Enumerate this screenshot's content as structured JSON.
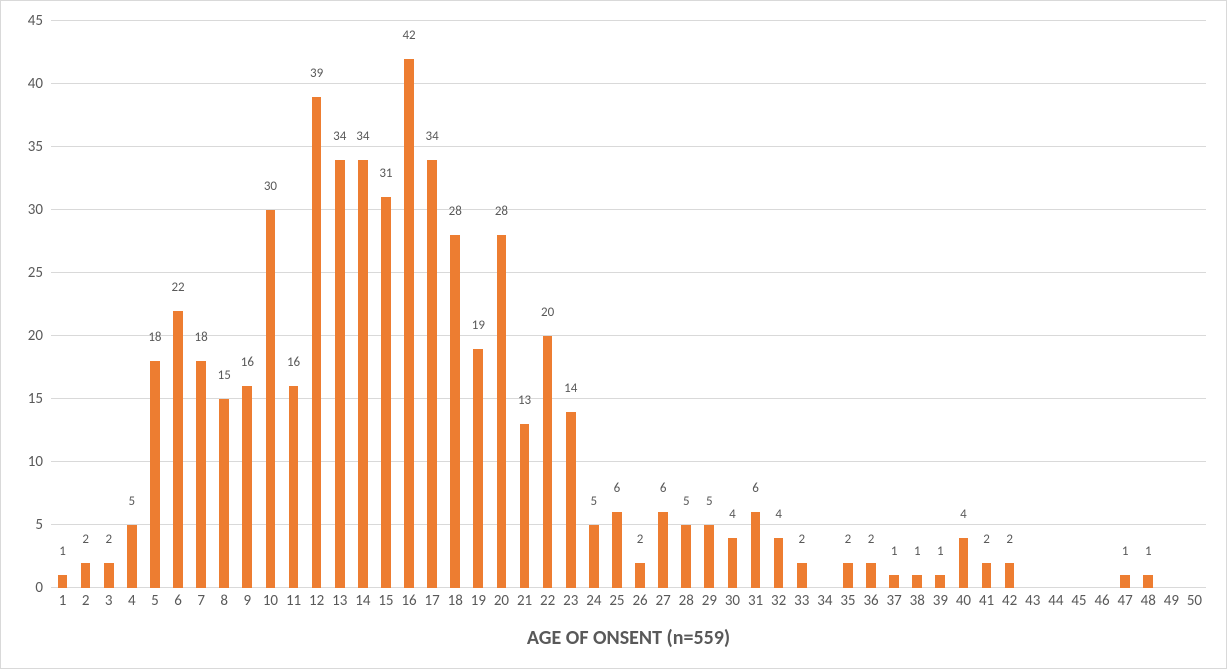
{
  "chart": {
    "type": "bar",
    "x_axis_title": "AGE OF ONSENT (n=559)",
    "x_axis_title_fontsize": 20,
    "tick_fontsize": 15,
    "value_label_fontsize": 13,
    "background_color": "#ffffff",
    "grid_color": "#d9d9d9",
    "bar_color": "#ed7d31",
    "text_color": "#595959",
    "ylim": [
      0,
      45
    ],
    "ytick_step": 5,
    "yticks": [
      0,
      5,
      10,
      15,
      20,
      25,
      30,
      35,
      40,
      45
    ],
    "categories": [
      "1",
      "2",
      "3",
      "4",
      "5",
      "6",
      "7",
      "8",
      "9",
      "10",
      "11",
      "12",
      "13",
      "14",
      "15",
      "16",
      "17",
      "18",
      "19",
      "20",
      "21",
      "22",
      "23",
      "24",
      "25",
      "26",
      "27",
      "28",
      "29",
      "30",
      "31",
      "32",
      "33",
      "34",
      "35",
      "36",
      "37",
      "38",
      "39",
      "40",
      "41",
      "42",
      "43",
      "44",
      "45",
      "46",
      "47",
      "48",
      "49",
      "50"
    ],
    "values": [
      1,
      2,
      2,
      5,
      18,
      22,
      18,
      15,
      16,
      30,
      16,
      39,
      34,
      34,
      31,
      42,
      34,
      28,
      19,
      28,
      13,
      20,
      14,
      5,
      6,
      2,
      6,
      5,
      5,
      4,
      6,
      4,
      2,
      0,
      2,
      2,
      1,
      1,
      1,
      4,
      2,
      2,
      0,
      0,
      0,
      0,
      1,
      1,
      0,
      0
    ],
    "bar_width_ratio": 0.42,
    "show_value_labels": true
  }
}
